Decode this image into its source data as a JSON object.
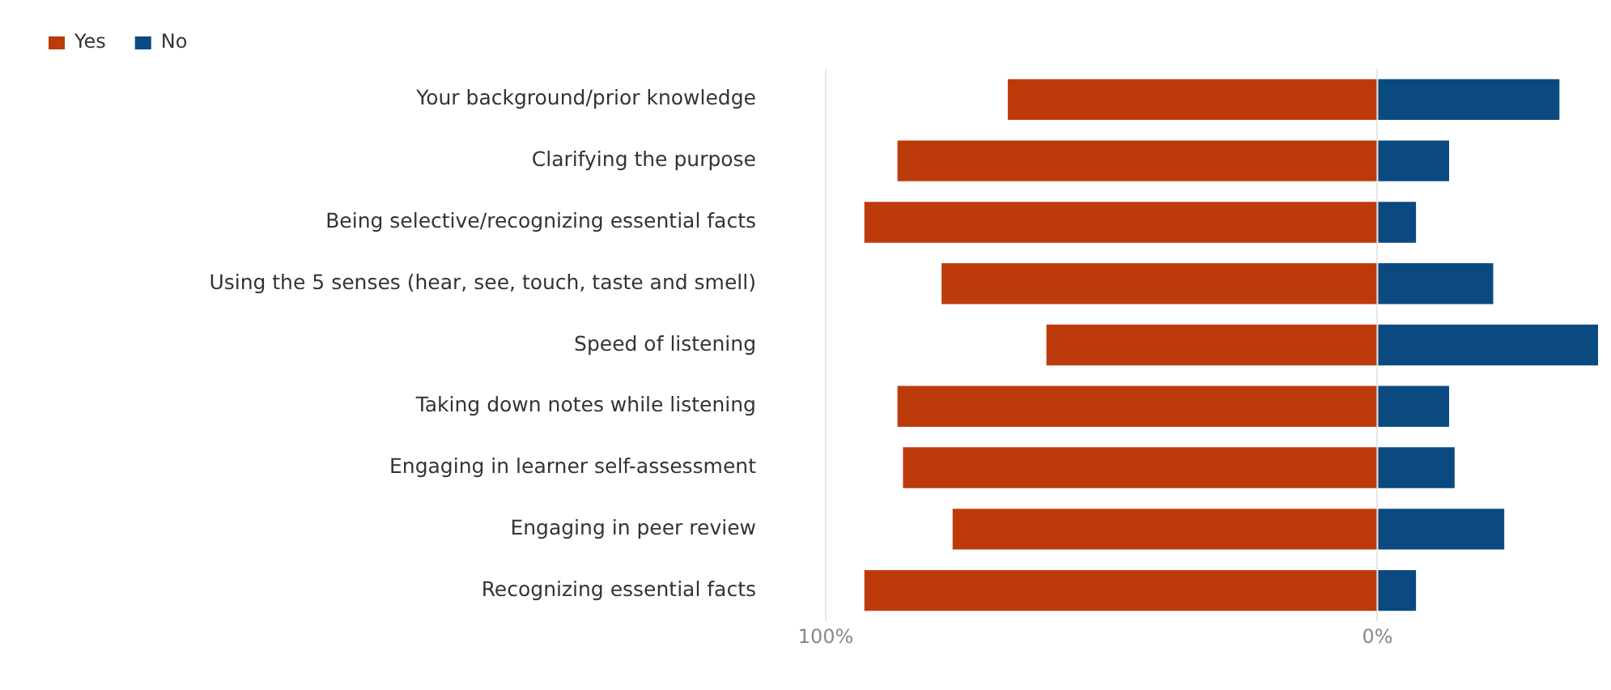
{
  "chart_data": {
    "type": "bar",
    "orientation": "horizontal",
    "stacked": true,
    "categories": [
      "Your background/prior knowledge",
      "Clarifying the purpose",
      "Being selective/recognizing essential facts",
      "Using the 5 senses (hear, see, touch, taste and smell)",
      "Speed of listening",
      "Taking down notes while listening",
      "Engaging in learner self-assessment",
      "Engaging in peer review",
      "Recognizing essential facts"
    ],
    "series": [
      {
        "name": "Yes",
        "color": "#bd3b0a",
        "values": [
          -67,
          -87,
          -93,
          -79,
          -60,
          -87,
          -86,
          -77,
          -93
        ]
      },
      {
        "name": "No",
        "color": "#0b4a80",
        "values": [
          33,
          13,
          7,
          21,
          40,
          13,
          14,
          23,
          7
        ]
      }
    ],
    "xlim": [
      -100,
      40
    ],
    "xticks": [
      {
        "value": -100,
        "label": "100%"
      },
      {
        "value": 0,
        "label": "0%"
      }
    ],
    "grid": "x",
    "legend": "top left"
  }
}
